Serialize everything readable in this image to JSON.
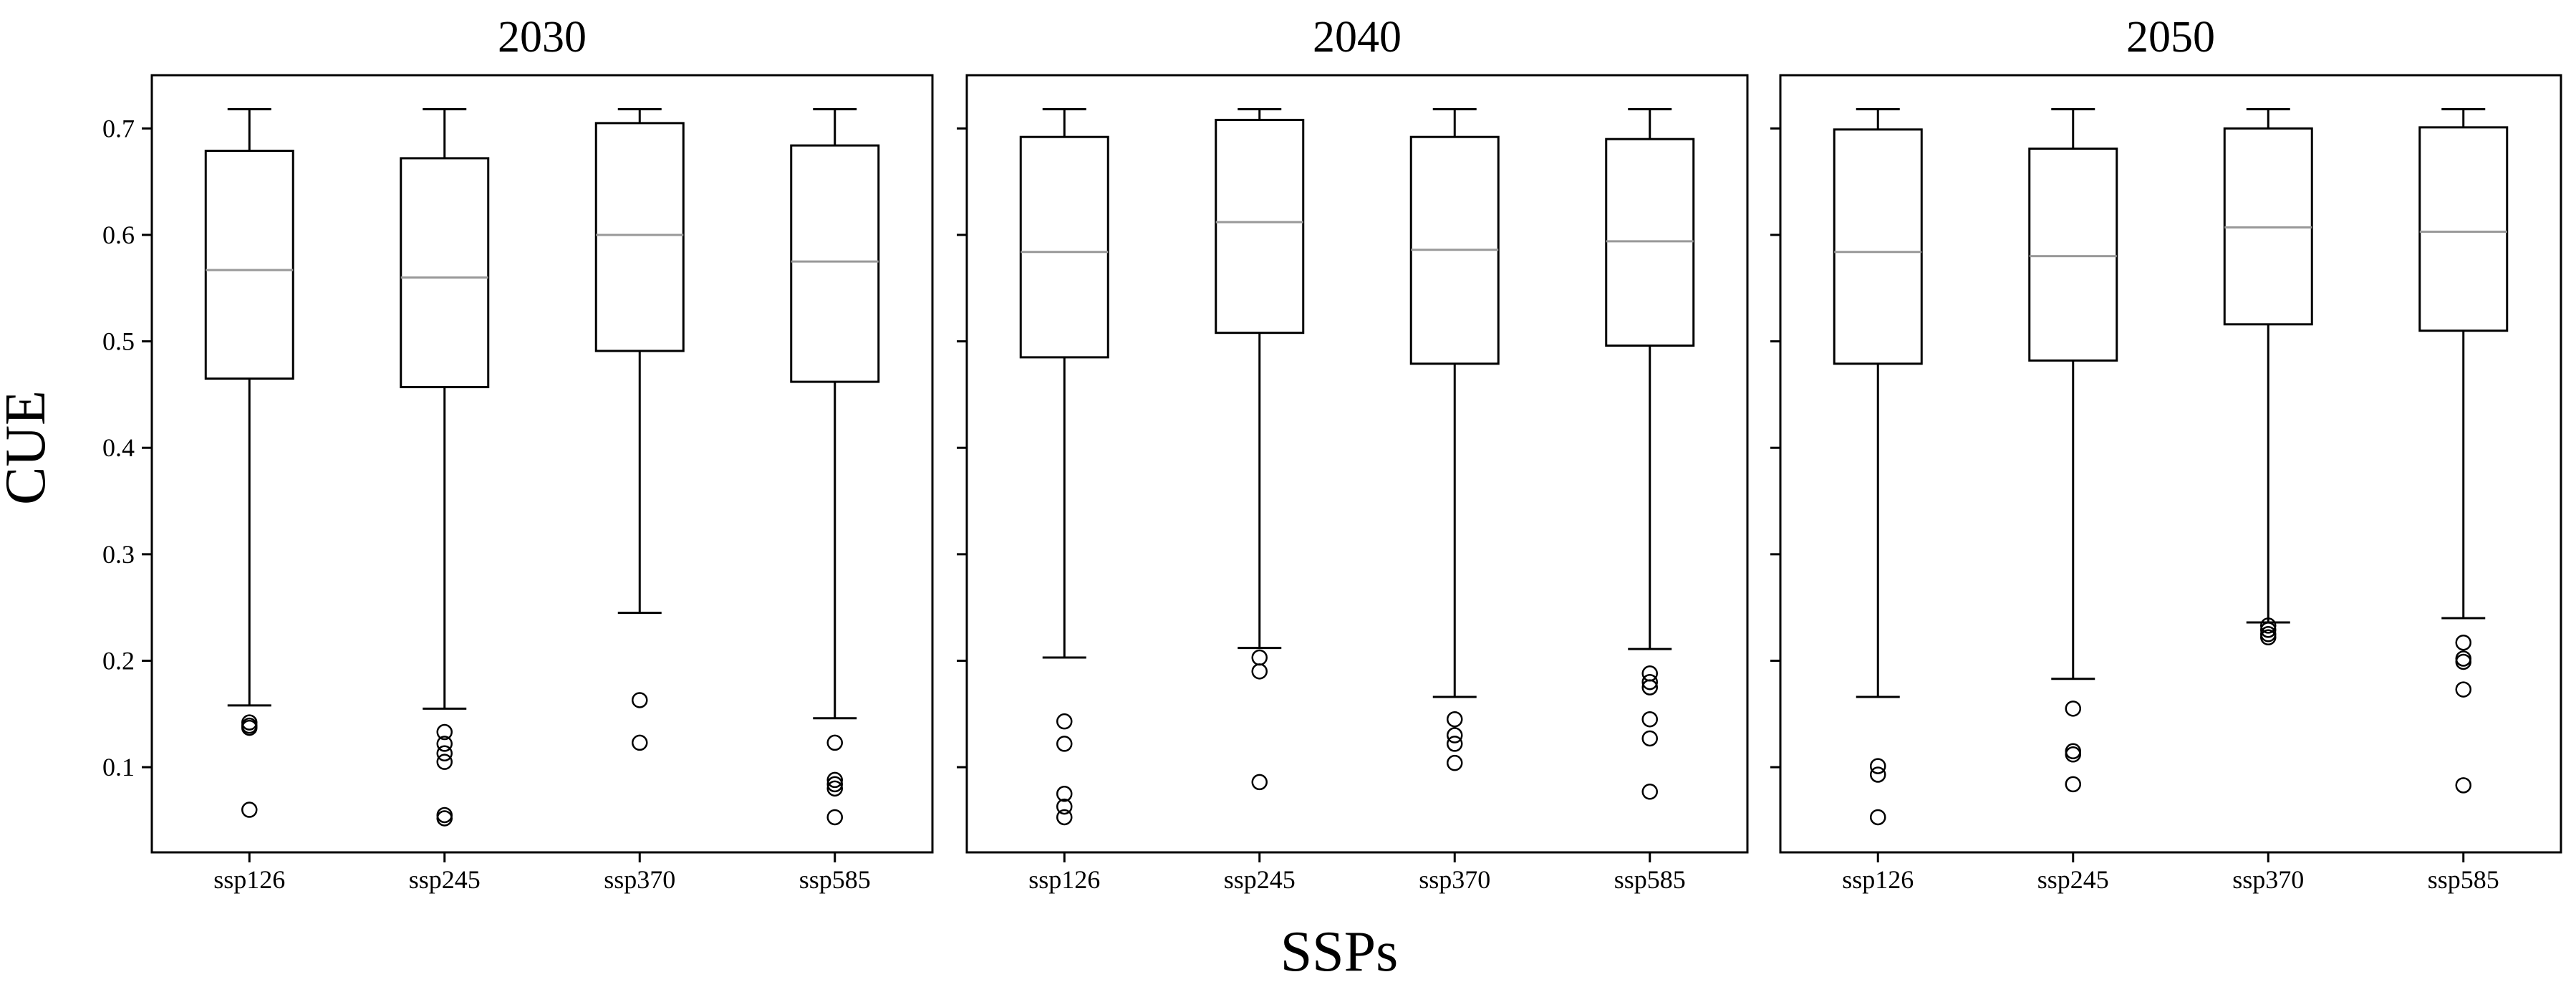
{
  "figure": {
    "ylabel": "CUE",
    "xlabel": "SSPs"
  },
  "colors": {
    "box": "#000000",
    "median": "#999999",
    "background": "#ffffff"
  },
  "chart_data": [
    {
      "type": "box",
      "title": "2030",
      "categories": [
        "ssp126",
        "ssp245",
        "ssp370",
        "ssp585"
      ],
      "ylim": [
        0.02,
        0.75
      ],
      "yticks": [
        0.1,
        0.2,
        0.3,
        0.4,
        0.5,
        0.6,
        0.7
      ],
      "ytick_labels": [
        "0.1",
        "0.2",
        "0.3",
        "0.4",
        "0.5",
        "0.6",
        "0.7"
      ],
      "boxes": [
        {
          "whislo": 0.158,
          "q1": 0.465,
          "med": 0.567,
          "q3": 0.679,
          "whishi": 0.718,
          "fliers": [
            0.142,
            0.139,
            0.137,
            0.06
          ]
        },
        {
          "whislo": 0.155,
          "q1": 0.457,
          "med": 0.56,
          "q3": 0.672,
          "whishi": 0.718,
          "fliers": [
            0.133,
            0.122,
            0.113,
            0.105,
            0.055,
            0.052
          ]
        },
        {
          "whislo": 0.245,
          "q1": 0.491,
          "med": 0.6,
          "q3": 0.705,
          "whishi": 0.718,
          "fliers": [
            0.163,
            0.123
          ]
        },
        {
          "whislo": 0.146,
          "q1": 0.462,
          "med": 0.575,
          "q3": 0.684,
          "whishi": 0.718,
          "fliers": [
            0.123,
            0.088,
            0.084,
            0.08,
            0.053
          ]
        }
      ]
    },
    {
      "type": "box",
      "title": "2040",
      "categories": [
        "ssp126",
        "ssp245",
        "ssp370",
        "ssp585"
      ],
      "ylim": [
        0.02,
        0.75
      ],
      "yticks": [
        0.1,
        0.2,
        0.3,
        0.4,
        0.5,
        0.6,
        0.7
      ],
      "ytick_labels": [],
      "boxes": [
        {
          "whislo": 0.203,
          "q1": 0.485,
          "med": 0.584,
          "q3": 0.692,
          "whishi": 0.718,
          "fliers": [
            0.143,
            0.122,
            0.075,
            0.063,
            0.053
          ]
        },
        {
          "whislo": 0.212,
          "q1": 0.508,
          "med": 0.612,
          "q3": 0.708,
          "whishi": 0.718,
          "fliers": [
            0.203,
            0.19,
            0.086
          ]
        },
        {
          "whislo": 0.166,
          "q1": 0.479,
          "med": 0.586,
          "q3": 0.692,
          "whishi": 0.718,
          "fliers": [
            0.145,
            0.13,
            0.122,
            0.104
          ]
        },
        {
          "whislo": 0.211,
          "q1": 0.496,
          "med": 0.594,
          "q3": 0.69,
          "whishi": 0.718,
          "fliers": [
            0.188,
            0.18,
            0.175,
            0.145,
            0.127,
            0.077
          ]
        }
      ]
    },
    {
      "type": "box",
      "title": "2050",
      "categories": [
        "ssp126",
        "ssp245",
        "ssp370",
        "ssp585"
      ],
      "ylim": [
        0.02,
        0.75
      ],
      "yticks": [
        0.1,
        0.2,
        0.3,
        0.4,
        0.5,
        0.6,
        0.7
      ],
      "ytick_labels": [],
      "boxes": [
        {
          "whislo": 0.166,
          "q1": 0.479,
          "med": 0.584,
          "q3": 0.699,
          "whishi": 0.718,
          "fliers": [
            0.101,
            0.093,
            0.053
          ]
        },
        {
          "whislo": 0.183,
          "q1": 0.482,
          "med": 0.58,
          "q3": 0.681,
          "whishi": 0.718,
          "fliers": [
            0.155,
            0.115,
            0.112,
            0.084
          ]
        },
        {
          "whislo": 0.236,
          "q1": 0.516,
          "med": 0.607,
          "q3": 0.7,
          "whishi": 0.718,
          "fliers": [
            0.233,
            0.229,
            0.225,
            0.222
          ]
        },
        {
          "whislo": 0.24,
          "q1": 0.51,
          "med": 0.603,
          "q3": 0.701,
          "whishi": 0.718,
          "fliers": [
            0.217,
            0.202,
            0.199,
            0.173,
            0.083
          ]
        }
      ]
    }
  ]
}
